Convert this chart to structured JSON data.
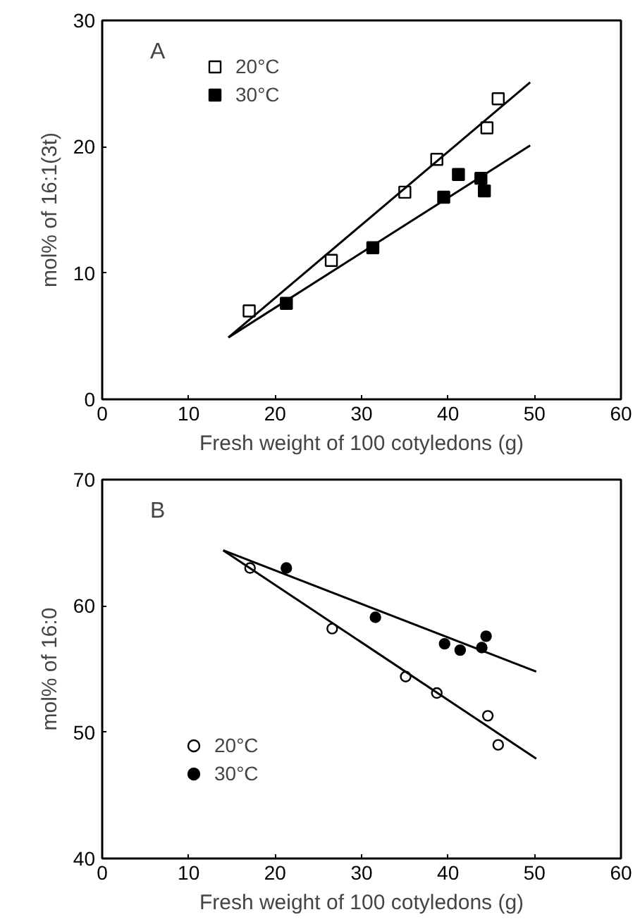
{
  "chart_data": [
    {
      "type": "scatter",
      "xlabel": "Fresh weight of 100 cotyledons (g)",
      "ylabel": "mol% of 16:1(3t)",
      "annotations": [
        "A"
      ],
      "xlim": [
        0,
        60
      ],
      "xticks": [
        0,
        10,
        20,
        30,
        40,
        50,
        60
      ],
      "ylim": [
        0,
        30
      ],
      "yticks": [
        0,
        10,
        20,
        30
      ],
      "grid": false,
      "legend": "top left",
      "series": [
        {
          "name": "20°C",
          "color": "#ffffff",
          "marker": "square",
          "x": [
            17.0,
            26.5,
            35.0,
            38.7,
            44.5,
            45.8
          ],
          "values": [
            7.0,
            11.0,
            16.4,
            19.0,
            21.5,
            23.8
          ]
        },
        {
          "name": "30°C",
          "color": "#000000",
          "marker": "square",
          "x": [
            21.3,
            31.3,
            39.5,
            41.2,
            43.8,
            44.2
          ],
          "values": [
            7.6,
            12.0,
            16.0,
            17.8,
            17.5,
            16.5
          ]
        },
        {
          "type": "line",
          "color": "#000000",
          "x": [
            14.6,
            49.5
          ],
          "values": [
            4.9,
            25.1
          ]
        },
        {
          "type": "line",
          "color": "#000000",
          "x": [
            14.6,
            49.5
          ],
          "values": [
            4.9,
            20.1
          ]
        }
      ]
    },
    {
      "type": "scatter",
      "xlabel": "Fresh weight of 100 cotyledons (g)",
      "ylabel": "mol% of 16:0",
      "annotations": [
        "B"
      ],
      "xlim": [
        0,
        60
      ],
      "xticks": [
        0,
        10,
        20,
        30,
        40,
        50,
        60
      ],
      "ylim": [
        40,
        70
      ],
      "yticks": [
        40,
        50,
        60,
        70
      ],
      "grid": false,
      "legend": "bottom left",
      "series": [
        {
          "name": "20°C",
          "color": "#ffffff",
          "marker": "circle",
          "x": [
            17.1,
            26.6,
            35.1,
            38.7,
            44.6,
            45.8
          ],
          "values": [
            63.0,
            58.2,
            54.4,
            53.1,
            51.3,
            49.0
          ]
        },
        {
          "name": "30°C",
          "color": "#000000",
          "marker": "circle",
          "x": [
            21.3,
            31.6,
            39.6,
            41.4,
            43.9,
            44.4
          ],
          "values": [
            63.0,
            59.1,
            57.0,
            56.5,
            56.7,
            57.6
          ]
        },
        {
          "type": "line",
          "color": "#000000",
          "x": [
            14.0,
            50.2
          ],
          "values": [
            64.4,
            47.9
          ]
        },
        {
          "type": "line",
          "color": "#000000",
          "x": [
            14.0,
            50.2
          ],
          "values": [
            64.4,
            54.8
          ]
        }
      ]
    }
  ]
}
